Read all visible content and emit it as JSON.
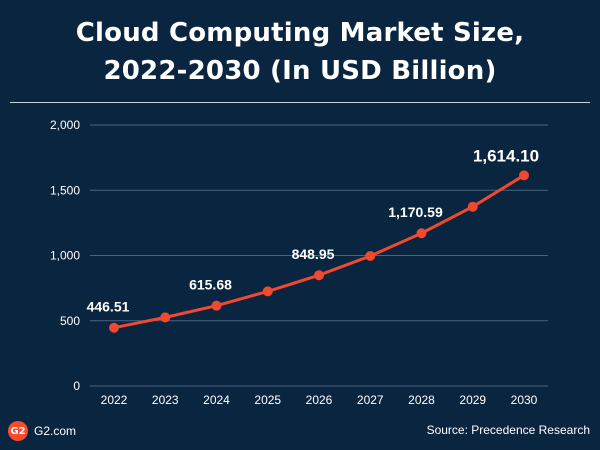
{
  "title_line1": "Cloud Computing Market Size,",
  "title_line2": "2022-2030 (In USD Billion)",
  "footer": {
    "brand": "G2.com",
    "logo_text": "G2",
    "source": "Source: Precedence Research"
  },
  "colors": {
    "background": "#0a2540",
    "line": "#f0492f",
    "grid": "#4a6482",
    "text": "#ffffff"
  },
  "chart_data": {
    "type": "line",
    "title": "Cloud Computing Market Size, 2022-2030 (In USD Billion)",
    "xlabel": "",
    "ylabel": "",
    "categories": [
      "2022",
      "2023",
      "2024",
      "2025",
      "2026",
      "2027",
      "2028",
      "2029",
      "2030"
    ],
    "series": [
      {
        "values": [
          446.51,
          526,
          615.68,
          725,
          848.95,
          996,
          1170.59,
          1374,
          1614.1
        ]
      }
    ],
    "data_labels": [
      {
        "index": 0,
        "text": "446.51"
      },
      {
        "index": 2,
        "text": "615.68"
      },
      {
        "index": 4,
        "text": "848.95"
      },
      {
        "index": 6,
        "text": "1,170.59"
      },
      {
        "index": 8,
        "text": "1,614.10"
      }
    ],
    "ylim": [
      0,
      2000
    ],
    "yticks": [
      0,
      500,
      1000,
      1500,
      2000
    ],
    "ytick_labels": [
      "0",
      "500",
      "1,000",
      "1,500",
      "2,000"
    ],
    "grid": true,
    "legend": "none"
  }
}
